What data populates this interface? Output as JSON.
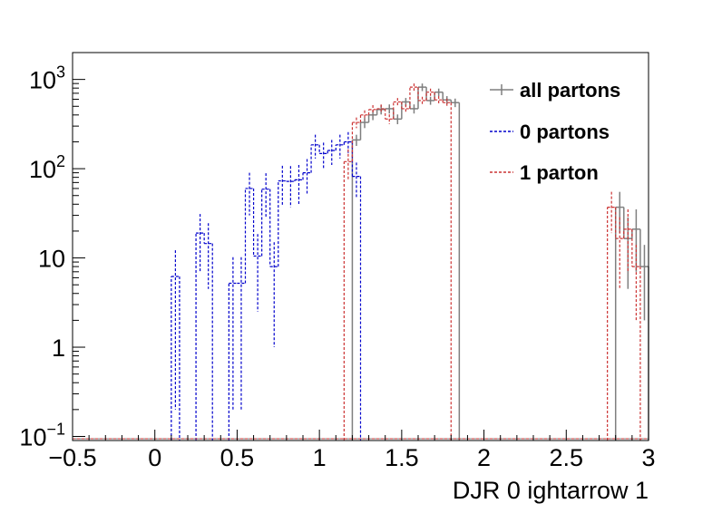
{
  "chart_data": {
    "type": "histogram",
    "xlabel": "DJR 0 ightarrow 1",
    "ylabel": "",
    "xlim": [
      -0.5,
      3.0
    ],
    "ylim": [
      0.09,
      2000
    ],
    "y_scale": "log",
    "grid": false,
    "legend_placement": "top-right",
    "bin_width": 0.05,
    "x_ticks": [
      {
        "value": -0.5,
        "label": "−0.5"
      },
      {
        "value": 0,
        "label": "0"
      },
      {
        "value": 0.5,
        "label": "0.5"
      },
      {
        "value": 1,
        "label": "1"
      },
      {
        "value": 1.5,
        "label": "1.5"
      },
      {
        "value": 2,
        "label": "2"
      },
      {
        "value": 2.5,
        "label": "2.5"
      },
      {
        "value": 3,
        "label": "3"
      }
    ],
    "y_ticks": [
      {
        "value": 0.1,
        "base": "10",
        "exp": "−1"
      },
      {
        "value": 1,
        "base": "1",
        "exp": ""
      },
      {
        "value": 10,
        "base": "10",
        "exp": ""
      },
      {
        "value": 100,
        "base": "10",
        "exp": "2"
      },
      {
        "value": 1000,
        "base": "10",
        "exp": "3"
      }
    ],
    "series": [
      {
        "name": "all partons",
        "color": "#7f7f7f",
        "style": "solid",
        "bins": [
          {
            "x": 1.25,
            "y": 210,
            "err": 30
          },
          {
            "x": 1.3,
            "y": 330,
            "err": 45
          },
          {
            "x": 1.35,
            "y": 400,
            "err": 50
          },
          {
            "x": 1.4,
            "y": 460,
            "err": 55
          },
          {
            "x": 1.45,
            "y": 470,
            "err": 55
          },
          {
            "x": 1.5,
            "y": 360,
            "err": 45
          },
          {
            "x": 1.55,
            "y": 560,
            "err": 60
          },
          {
            "x": 1.6,
            "y": 470,
            "err": 55
          },
          {
            "x": 1.65,
            "y": 820,
            "err": 80
          },
          {
            "x": 1.7,
            "y": 580,
            "err": 60
          },
          {
            "x": 1.75,
            "y": 720,
            "err": 70
          },
          {
            "x": 1.8,
            "y": 590,
            "err": 60
          },
          {
            "x": 1.85,
            "y": 550,
            "err": 60
          },
          {
            "x": 2.85,
            "y": 37,
            "err": 18
          },
          {
            "x": 2.9,
            "y": 16.5,
            "err": 12
          },
          {
            "x": 2.95,
            "y": 21,
            "err": 14
          },
          {
            "x": 3.0,
            "y": 8,
            "err": 6
          }
        ]
      },
      {
        "name": "0 partons",
        "color": "#0000cc",
        "style": "dashed",
        "bins": [
          {
            "x": 0.15,
            "y": 6.2,
            "err": 6
          },
          {
            "x": 0.3,
            "y": 19,
            "err": 12
          },
          {
            "x": 0.35,
            "y": 14.5,
            "err": 10
          },
          {
            "x": 0.5,
            "y": 5.2,
            "err": 5
          },
          {
            "x": 0.55,
            "y": 5.2,
            "err": 5
          },
          {
            "x": 0.6,
            "y": 60,
            "err": 30
          },
          {
            "x": 0.65,
            "y": 10.5,
            "err": 8
          },
          {
            "x": 0.7,
            "y": 59,
            "err": 30
          },
          {
            "x": 0.75,
            "y": 8,
            "err": 7
          },
          {
            "x": 0.8,
            "y": 73,
            "err": 35
          },
          {
            "x": 0.85,
            "y": 72,
            "err": 35
          },
          {
            "x": 0.9,
            "y": 75,
            "err": 35
          },
          {
            "x": 0.95,
            "y": 90,
            "err": 38
          },
          {
            "x": 1.0,
            "y": 185,
            "err": 55
          },
          {
            "x": 1.05,
            "y": 148,
            "err": 48
          },
          {
            "x": 1.1,
            "y": 160,
            "err": 50
          },
          {
            "x": 1.15,
            "y": 185,
            "err": 55
          },
          {
            "x": 1.2,
            "y": 200,
            "err": 57
          },
          {
            "x": 1.25,
            "y": 82,
            "err": 35
          }
        ]
      },
      {
        "name": "1 parton",
        "color": "#cc3333",
        "style": "dashed",
        "bins": [
          {
            "x": 1.2,
            "y": 120,
            "err": 45
          },
          {
            "x": 1.25,
            "y": 330,
            "err": 45
          },
          {
            "x": 1.3,
            "y": 400,
            "err": 50
          },
          {
            "x": 1.35,
            "y": 460,
            "err": 55
          },
          {
            "x": 1.4,
            "y": 470,
            "err": 55
          },
          {
            "x": 1.45,
            "y": 360,
            "err": 45
          },
          {
            "x": 1.5,
            "y": 560,
            "err": 60
          },
          {
            "x": 1.55,
            "y": 470,
            "err": 55
          },
          {
            "x": 1.6,
            "y": 820,
            "err": 80
          },
          {
            "x": 1.65,
            "y": 580,
            "err": 60
          },
          {
            "x": 1.7,
            "y": 720,
            "err": 70
          },
          {
            "x": 1.75,
            "y": 590,
            "err": 60
          },
          {
            "x": 1.8,
            "y": 550,
            "err": 60
          },
          {
            "x": 2.8,
            "y": 37,
            "err": 18
          },
          {
            "x": 2.85,
            "y": 16.5,
            "err": 12
          },
          {
            "x": 2.9,
            "y": 21,
            "err": 14
          },
          {
            "x": 2.95,
            "y": 8,
            "err": 6
          }
        ]
      }
    ]
  }
}
